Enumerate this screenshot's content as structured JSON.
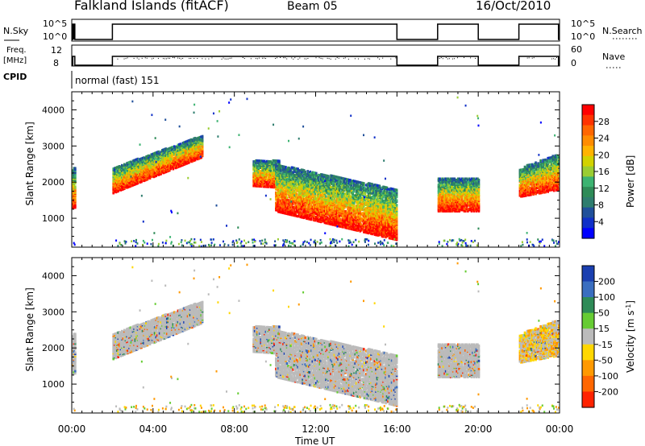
{
  "header": {
    "title": "Falkland Islands (fitACF)",
    "beam": "Beam 05",
    "date": "16/Oct/2010"
  },
  "panels": {
    "nsky_label": "N.Sky",
    "nsearch_label": "N.Search",
    "freq_label_top": "Freq.",
    "freq_label_bottom": "[MHz]",
    "nave_label": "Nave",
    "cpid_label": "CPID",
    "cpid_value": "normal (fast) 151",
    "nsky_ticks": [
      "10^5",
      "10^0"
    ],
    "nsearch_ticks": [
      "10^5",
      "10^0"
    ],
    "freq_ticks": [
      "12",
      "8"
    ],
    "nave_ticks": [
      "60",
      "0"
    ]
  },
  "chart_data": [
    {
      "type": "heatmap",
      "title": "",
      "xlabel": "",
      "ylabel": "Slant Range [km]",
      "ylim": [
        200,
        4500
      ],
      "y_ticks": [
        "1000",
        "2000",
        "3000",
        "4000"
      ],
      "colorbar_label": "Power [dB]",
      "colorbar_ticks": [
        "28",
        "24",
        "20",
        "16",
        "12",
        "8",
        "4"
      ],
      "colorbar_colors": [
        "#ff0000",
        "#ff3300",
        "#ff6600",
        "#ff8c00",
        "#ffb300",
        "#d2d200",
        "#9acd32",
        "#3cb371",
        "#2e8b57",
        "#2e7d6e",
        "#20509a",
        "#1030c8",
        "#0000ff"
      ]
    },
    {
      "type": "heatmap",
      "title": "",
      "xlabel": "Time UT",
      "ylabel": "Slant Range [km]",
      "ylim": [
        200,
        4500
      ],
      "y_ticks": [
        "1000",
        "2000",
        "3000",
        "4000"
      ],
      "x_ticks": [
        "00:00",
        "04:00",
        "08:00",
        "12:00",
        "16:00",
        "20:00",
        "00:00"
      ],
      "colorbar_label": "Velocity [m s^-1]",
      "colorbar_ticks": [
        "200",
        "100",
        "50",
        "15",
        "-15",
        "-50",
        "-100",
        "-200"
      ],
      "colorbar_colors": [
        "#1a3fb0",
        "#3a6ec0",
        "#2e8b57",
        "#66cc33",
        "#bbbbbb",
        "#ffd700",
        "#ff9900",
        "#ff6600",
        "#ff2200"
      ]
    }
  ]
}
